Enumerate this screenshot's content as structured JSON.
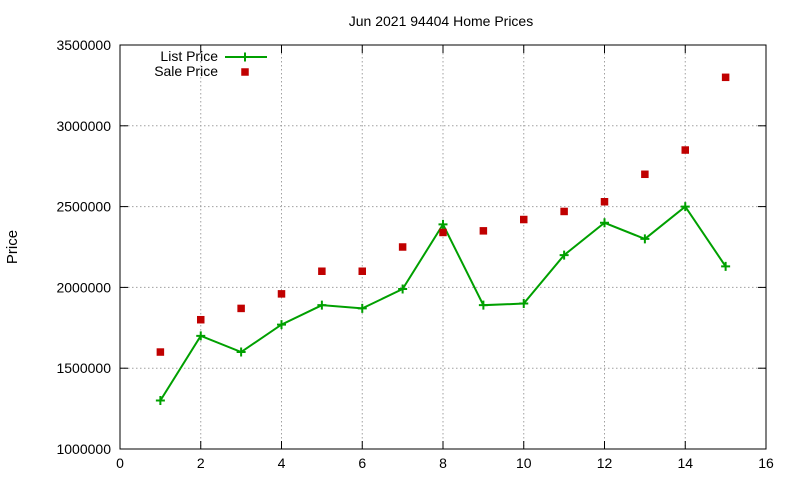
{
  "chart_data": {
    "type": "line",
    "title": "Jun 2021 94404 Home Prices",
    "xlabel": "",
    "ylabel": "Price",
    "xlim": [
      0,
      16
    ],
    "ylim": [
      1000000,
      3500000
    ],
    "x_ticks": [
      0,
      2,
      4,
      6,
      8,
      10,
      12,
      14,
      16
    ],
    "y_ticks": [
      1000000,
      1500000,
      2000000,
      2500000,
      3000000,
      3500000
    ],
    "x_tick_labels": [
      "0",
      "2",
      "4",
      "6",
      "8",
      "10",
      "12",
      "14",
      "16"
    ],
    "y_tick_labels": [
      "1000000",
      "1500000",
      "2000000",
      "2500000",
      "3000000",
      "3500000"
    ],
    "grid": true,
    "legend_position": "top-left",
    "series": [
      {
        "name": "List Price",
        "style": "linespoints",
        "marker": "plus",
        "color": "#00a000",
        "x": [
          1,
          2,
          3,
          4,
          5,
          6,
          7,
          8,
          9,
          10,
          11,
          12,
          13,
          14,
          15
        ],
        "y": [
          1300000,
          1700000,
          1600000,
          1770000,
          1890000,
          1870000,
          1990000,
          2390000,
          1890000,
          1900000,
          2200000,
          2400000,
          2300000,
          2500000,
          2130000
        ]
      },
      {
        "name": "Sale Price",
        "style": "points",
        "marker": "square",
        "color": "#c00000",
        "x": [
          1,
          2,
          3,
          4,
          5,
          6,
          7,
          8,
          9,
          10,
          11,
          12,
          13,
          14,
          15
        ],
        "y": [
          1600000,
          1800000,
          1870000,
          1960000,
          2100000,
          2100000,
          2250000,
          2340000,
          2350000,
          2420000,
          2470000,
          2530000,
          2700000,
          2850000,
          3300000
        ]
      }
    ]
  }
}
